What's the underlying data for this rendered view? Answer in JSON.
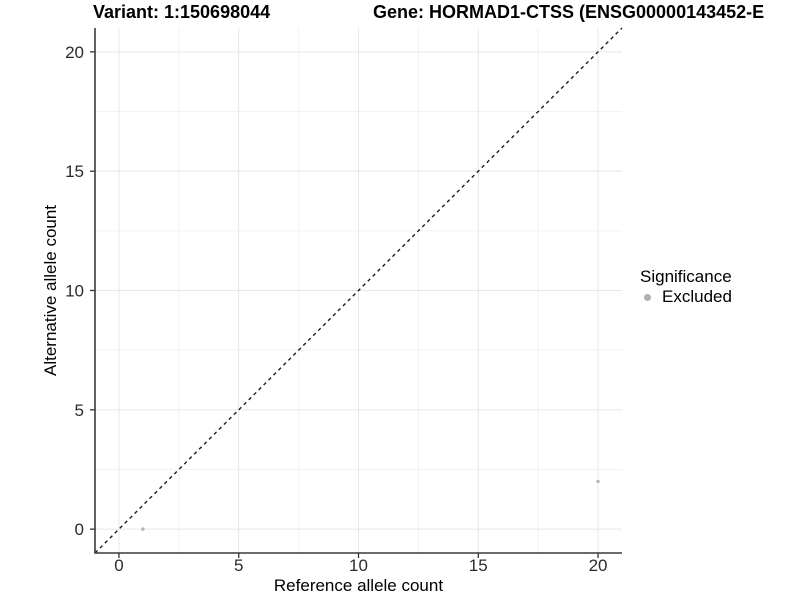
{
  "chart_data": {
    "type": "scatter",
    "title": "Variant: 1:150698044",
    "title_right": "Gene: HORMAD1-CTSS (ENSG00000143452-E",
    "xlabel": "Reference allele count",
    "ylabel": "Alternative allele count",
    "xlim": [
      -1,
      21
    ],
    "ylim": [
      -1,
      21
    ],
    "x_ticks": [
      0,
      5,
      10,
      15,
      20
    ],
    "y_ticks": [
      0,
      5,
      10,
      15,
      20
    ],
    "x_minor_ticks": [
      2.5,
      7.5,
      12.5,
      17.5
    ],
    "y_minor_ticks": [
      2.5,
      7.5,
      12.5,
      17.5
    ],
    "grid": "major+minor",
    "identity_line": {
      "style": "dashed",
      "slope": 1,
      "intercept": 0,
      "from": -1,
      "to": 21
    },
    "series": [
      {
        "name": "Excluded",
        "color": "#b5b5b5",
        "points": [
          {
            "x": 1,
            "y": 0
          },
          {
            "x": 20,
            "y": 2
          }
        ]
      }
    ],
    "legend": {
      "title": "Significance",
      "position": "right",
      "items": [
        {
          "label": "Excluded",
          "color": "#b0b0b0"
        }
      ]
    },
    "colors": {
      "grid_major": "#e7e7e7",
      "grid_minor": "#f2f2f2",
      "axis_line": "#3a3a3a",
      "tick": "#333333",
      "dashed_line": "#1c1c1c"
    }
  }
}
